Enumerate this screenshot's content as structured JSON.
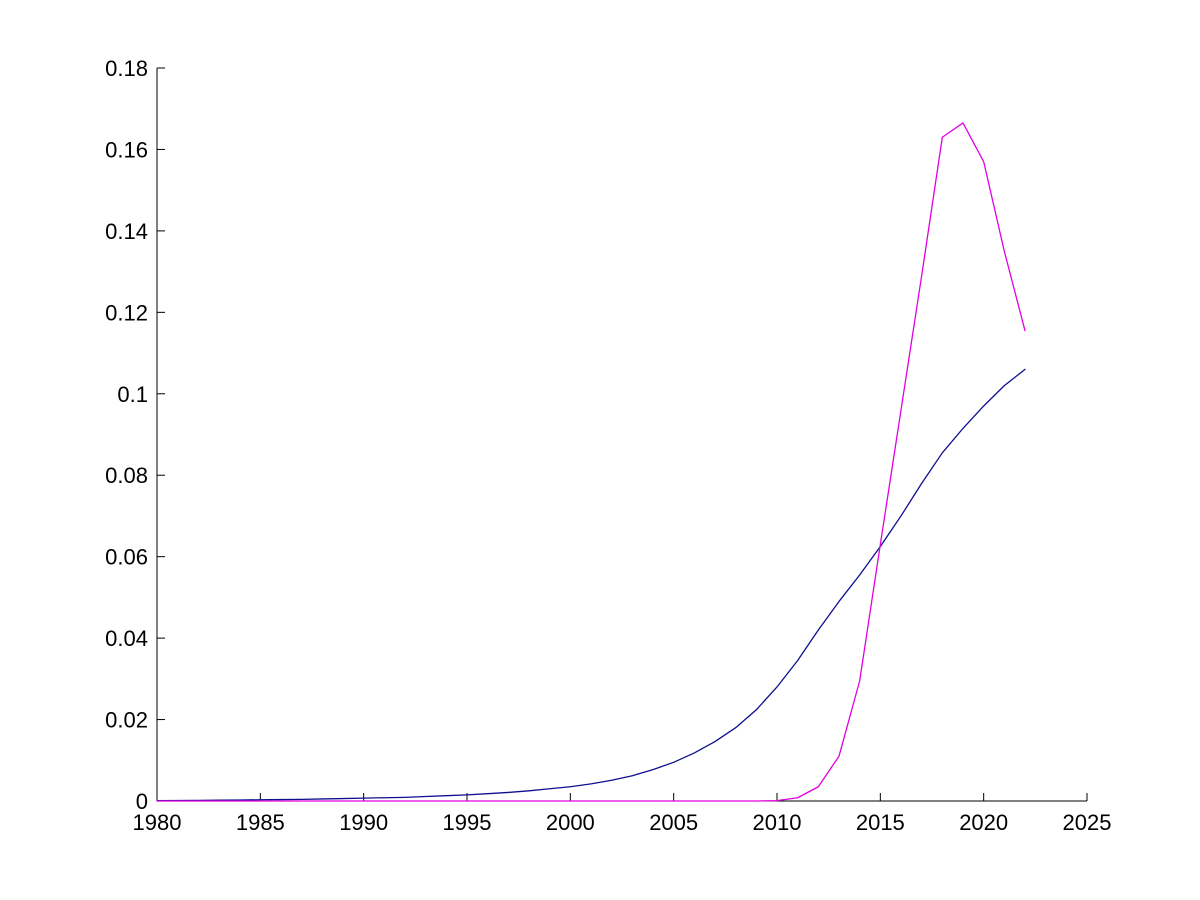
{
  "figure": {
    "background_color": "#ffffff"
  },
  "chart_data": {
    "type": "line",
    "title": "",
    "xlabel": "",
    "ylabel": "",
    "grid": false,
    "legend": "none",
    "axis_color": "#000000",
    "tick_label_color": "#000000",
    "xlim": [
      1980,
      2025
    ],
    "ylim": [
      0,
      0.18
    ],
    "x_ticks": [
      1980,
      1985,
      1990,
      1995,
      2000,
      2005,
      2010,
      2015,
      2020,
      2025
    ],
    "x_tick_labels": [
      "1980",
      "1985",
      "1990",
      "1995",
      "2000",
      "2005",
      "2010",
      "2015",
      "2020",
      "2025"
    ],
    "y_ticks": [
      0,
      0.02,
      0.04,
      0.06,
      0.08,
      0.1,
      0.12,
      0.14,
      0.16,
      0.18
    ],
    "y_tick_labels": [
      "0",
      "0.02",
      "0.04",
      "0.06",
      "0.08",
      "0.1",
      "0.12",
      "0.14",
      "0.16",
      "0.18"
    ],
    "x": [
      1980,
      1981,
      1982,
      1983,
      1984,
      1985,
      1986,
      1987,
      1988,
      1989,
      1990,
      1991,
      1992,
      1993,
      1994,
      1995,
      1996,
      1997,
      1998,
      1999,
      2000,
      2001,
      2002,
      2003,
      2004,
      2005,
      2006,
      2007,
      2008,
      2009,
      2010,
      2011,
      2012,
      2013,
      2014,
      2015,
      2016,
      2017,
      2018,
      2019,
      2020,
      2021,
      2022
    ],
    "series": [
      {
        "name": "line-1-dark-blue",
        "color": "#0f0f8f",
        "values": [
          0.0001,
          0.00012,
          0.00015,
          0.0002,
          0.00025,
          0.0003,
          0.00035,
          0.0004,
          0.0005,
          0.0006,
          0.0007,
          0.0008,
          0.0009,
          0.0011,
          0.0013,
          0.0015,
          0.0018,
          0.0021,
          0.0025,
          0.003,
          0.0035,
          0.0042,
          0.0051,
          0.0062,
          0.0077,
          0.0095,
          0.0118,
          0.0146,
          0.018,
          0.0224,
          0.028,
          0.0345,
          0.042,
          0.049,
          0.0555,
          0.0625,
          0.07,
          0.078,
          0.0855,
          0.0915,
          0.097,
          0.102,
          0.106
        ]
      },
      {
        "name": "line-2-magenta",
        "color": "#e000e0",
        "values": [
          0,
          0,
          0,
          0,
          0,
          0,
          0,
          0,
          0,
          0,
          0,
          0,
          0,
          0,
          0,
          0,
          0,
          0,
          0,
          0,
          0,
          0,
          0,
          0,
          0,
          0,
          0,
          0,
          0,
          0,
          0.0001,
          0.0008,
          0.0035,
          0.011,
          0.0295,
          0.063,
          0.096,
          0.129,
          0.163,
          0.1665,
          0.157,
          0.135,
          0.1155
        ]
      }
    ]
  }
}
